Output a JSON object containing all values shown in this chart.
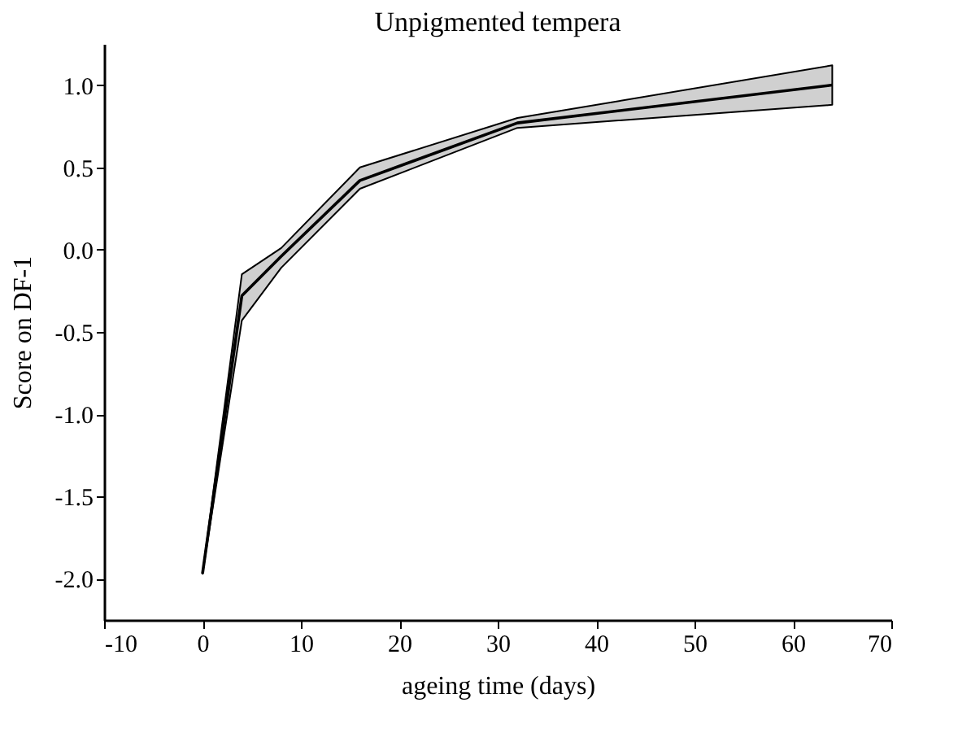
{
  "chart_data": {
    "type": "line",
    "title": "Unpigmented tempera",
    "xlabel": "ageing time (days)",
    "ylabel": "Score on DF-1",
    "series": [
      {
        "x": [
          0,
          4,
          8,
          16,
          32,
          64
        ],
        "color": "#000000",
        "values": [
          -1.97,
          -0.28,
          -0.04,
          0.42,
          0.77,
          1.0
        ],
        "lower": [
          -1.97,
          -0.43,
          -0.11,
          0.37,
          0.74,
          0.88
        ],
        "upper": [
          -1.97,
          -0.15,
          0.01,
          0.5,
          0.8,
          1.12
        ]
      }
    ],
    "xlim": [
      -10,
      70
    ],
    "xticks": [
      -10,
      0,
      10,
      20,
      30,
      40,
      50,
      60,
      70
    ],
    "ylim": [
      -2.25,
      1.25
    ],
    "yticks": [
      {
        "value": -2,
        "label": "-2.0"
      },
      -1.5,
      {
        "value": -1,
        "label": "-1.0"
      },
      -0.5,
      {
        "value": 0,
        "label": "0.0"
      },
      0.5,
      {
        "value": 1,
        "label": "1.0"
      }
    ],
    "grid": false,
    "marker": "none",
    "line_style": "solid"
  }
}
